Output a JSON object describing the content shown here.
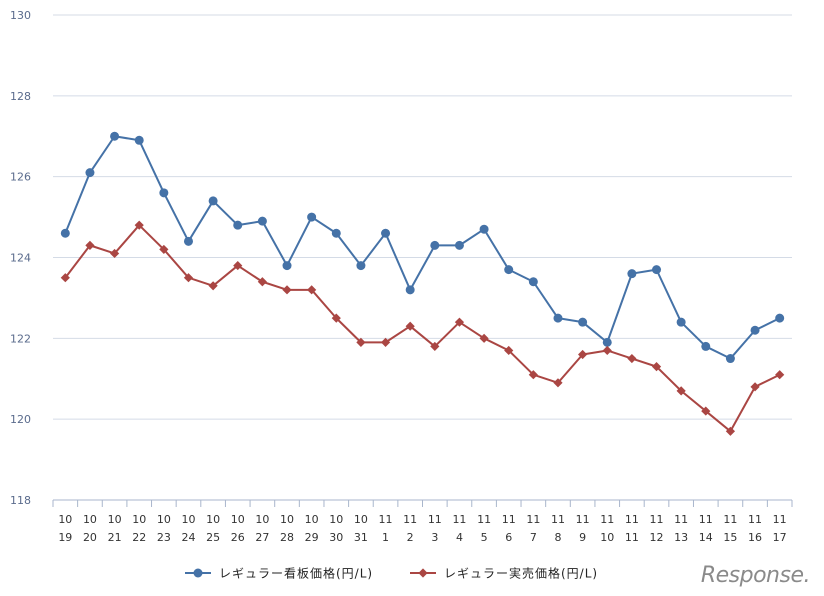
{
  "watermark": "Response.",
  "chart_data": {
    "type": "line",
    "categories": [
      [
        "10",
        "19"
      ],
      [
        "10",
        "20"
      ],
      [
        "10",
        "21"
      ],
      [
        "10",
        "22"
      ],
      [
        "10",
        "23"
      ],
      [
        "10",
        "24"
      ],
      [
        "10",
        "25"
      ],
      [
        "10",
        "26"
      ],
      [
        "10",
        "27"
      ],
      [
        "10",
        "28"
      ],
      [
        "10",
        "29"
      ],
      [
        "10",
        "30"
      ],
      [
        "10",
        "31"
      ],
      [
        "11",
        "1"
      ],
      [
        "11",
        "2"
      ],
      [
        "11",
        "3"
      ],
      [
        "11",
        "4"
      ],
      [
        "11",
        "5"
      ],
      [
        "11",
        "6"
      ],
      [
        "11",
        "7"
      ],
      [
        "11",
        "8"
      ],
      [
        "11",
        "9"
      ],
      [
        "11",
        "10"
      ],
      [
        "11",
        "11"
      ],
      [
        "11",
        "12"
      ],
      [
        "11",
        "13"
      ],
      [
        "11",
        "14"
      ],
      [
        "11",
        "15"
      ],
      [
        "11",
        "16"
      ],
      [
        "11",
        "17"
      ]
    ],
    "series": [
      {
        "name": "レギュラー看板価格(円/L)",
        "color": "#4572a7",
        "marker": "circle",
        "values": [
          124.6,
          126.1,
          127.0,
          126.9,
          125.6,
          124.4,
          125.4,
          124.8,
          124.9,
          123.8,
          125.0,
          124.6,
          123.8,
          124.6,
          123.2,
          124.3,
          124.3,
          124.7,
          123.7,
          123.4,
          122.5,
          122.4,
          121.9,
          123.6,
          123.7,
          122.4,
          121.8,
          121.5,
          122.2,
          122.5
        ]
      },
      {
        "name": "レギュラー実売価格(円/L)",
        "color": "#aa4643",
        "marker": "diamond",
        "values": [
          123.5,
          124.3,
          124.1,
          124.8,
          124.2,
          123.5,
          123.3,
          123.8,
          123.4,
          123.2,
          123.2,
          122.5,
          121.9,
          121.9,
          122.3,
          121.8,
          122.4,
          122.0,
          121.7,
          121.1,
          120.9,
          121.6,
          121.7,
          121.5,
          121.3,
          120.7,
          120.2,
          119.7,
          120.8,
          121.1
        ]
      }
    ],
    "yticks": [
      "130",
      "128",
      "126",
      "124",
      "122",
      "120",
      "118"
    ],
    "ylim": [
      118,
      130
    ],
    "grid": true,
    "legend": "bottom"
  }
}
